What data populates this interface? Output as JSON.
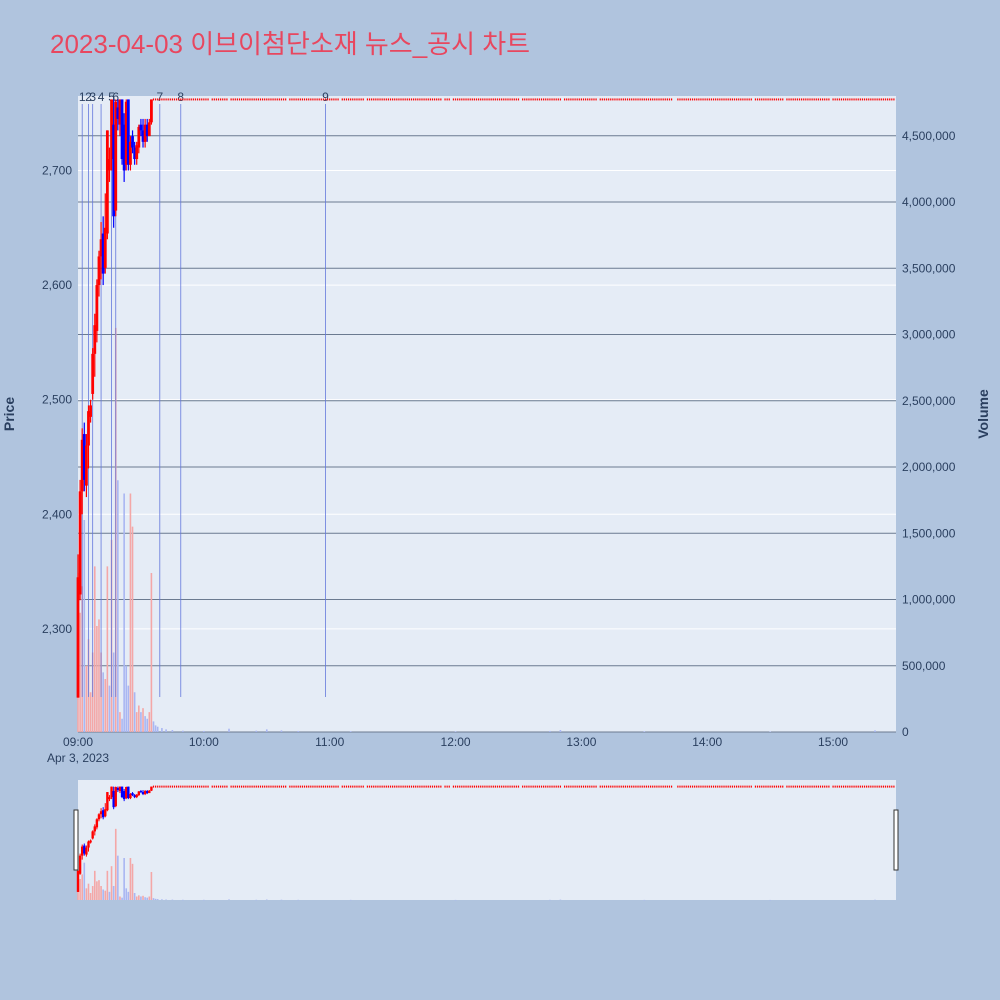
{
  "title": "2023-04-03 이브이첨단소재 뉴스_공시 차트",
  "chart_data": {
    "type": "candlestick",
    "date_label": "Apr 3, 2023",
    "yaxis_price": {
      "title": "Price",
      "range": [
        2210,
        2765
      ],
      "ticks": [
        2300,
        2400,
        2500,
        2600,
        2700
      ],
      "tick_labels": [
        "2,300",
        "2,400",
        "2,500",
        "2,600",
        "2,700"
      ]
    },
    "yaxis_volume": {
      "title": "Volume",
      "range": [
        0,
        4800000
      ],
      "ticks": [
        0,
        500000,
        1000000,
        1500000,
        2000000,
        2500000,
        3000000,
        3500000,
        4000000,
        4500000
      ],
      "tick_labels": [
        "0",
        "500,000",
        "1,000,000",
        "1,500,000",
        "2,000,000",
        "2,500,000",
        "3,000,000",
        "3,500,000",
        "4,000,000",
        "4,500,000"
      ]
    },
    "xaxis": {
      "range": [
        "09:00",
        "15:30"
      ],
      "ticks": [
        "09:00",
        "10:00",
        "11:00",
        "12:00",
        "13:00",
        "14:00",
        "15:00"
      ]
    },
    "candles": [
      {
        "t": "09:00",
        "o": 2240,
        "h": 2365,
        "l": 2240,
        "c": 2345
      },
      {
        "t": "09:01",
        "o": 2330,
        "h": 2430,
        "l": 2325,
        "c": 2420
      },
      {
        "t": "09:02",
        "o": 2420,
        "h": 2475,
        "l": 2400,
        "c": 2465
      },
      {
        "t": "09:03",
        "o": 2470,
        "h": 2480,
        "l": 2420,
        "c": 2430
      },
      {
        "t": "09:04",
        "o": 2425,
        "h": 2470,
        "l": 2415,
        "c": 2460
      },
      {
        "t": "09:05",
        "o": 2460,
        "h": 2495,
        "l": 2440,
        "c": 2490
      },
      {
        "t": "09:06",
        "o": 2485,
        "h": 2500,
        "l": 2480,
        "c": 2495
      },
      {
        "t": "09:07",
        "o": 2505,
        "h": 2545,
        "l": 2500,
        "c": 2540
      },
      {
        "t": "09:08",
        "o": 2540,
        "h": 2575,
        "l": 2520,
        "c": 2565
      },
      {
        "t": "09:09",
        "o": 2560,
        "h": 2605,
        "l": 2550,
        "c": 2600
      },
      {
        "t": "09:10",
        "o": 2600,
        "h": 2630,
        "l": 2590,
        "c": 2625
      },
      {
        "t": "09:11",
        "o": 2625,
        "h": 2655,
        "l": 2605,
        "c": 2640
      },
      {
        "t": "09:12",
        "o": 2645,
        "h": 2660,
        "l": 2600,
        "c": 2610
      },
      {
        "t": "09:13",
        "o": 2615,
        "h": 2680,
        "l": 2610,
        "c": 2650
      },
      {
        "t": "09:14",
        "o": 2645,
        "h": 2735,
        "l": 2640,
        "c": 2735
      },
      {
        "t": "09:15",
        "o": 2700,
        "h": 2720,
        "l": 2690,
        "c": 2710
      },
      {
        "t": "09:16",
        "o": 2710,
        "h": 2762,
        "l": 2700,
        "c": 2762
      },
      {
        "t": "09:17",
        "o": 2740,
        "h": 2762,
        "l": 2650,
        "c": 2660
      },
      {
        "t": "09:18",
        "o": 2665,
        "h": 2762,
        "l": 2660,
        "c": 2760
      },
      {
        "t": "09:19",
        "o": 2755,
        "h": 2762,
        "l": 2735,
        "c": 2745
      },
      {
        "t": "09:20",
        "o": 2740,
        "h": 2762,
        "l": 2730,
        "c": 2762
      },
      {
        "t": "09:21",
        "o": 2762,
        "h": 2762,
        "l": 2705,
        "c": 2710
      },
      {
        "t": "09:22",
        "o": 2740,
        "h": 2750,
        "l": 2690,
        "c": 2700
      },
      {
        "t": "09:23",
        "o": 2705,
        "h": 2762,
        "l": 2700,
        "c": 2760
      },
      {
        "t": "09:24",
        "o": 2762,
        "h": 2762,
        "l": 2700,
        "c": 2705
      },
      {
        "t": "09:25",
        "o": 2705,
        "h": 2730,
        "l": 2700,
        "c": 2725
      },
      {
        "t": "09:26",
        "o": 2730,
        "h": 2735,
        "l": 2715,
        "c": 2720
      },
      {
        "t": "09:27",
        "o": 2720,
        "h": 2725,
        "l": 2705,
        "c": 2710
      },
      {
        "t": "09:28",
        "o": 2710,
        "h": 2725,
        "l": 2705,
        "c": 2722
      },
      {
        "t": "09:29",
        "o": 2720,
        "h": 2740,
        "l": 2715,
        "c": 2738
      },
      {
        "t": "09:30",
        "o": 2740,
        "h": 2745,
        "l": 2730,
        "c": 2735
      },
      {
        "t": "09:31",
        "o": 2735,
        "h": 2745,
        "l": 2720,
        "c": 2725
      },
      {
        "t": "09:32",
        "o": 2725,
        "h": 2745,
        "l": 2720,
        "c": 2740
      },
      {
        "t": "09:33",
        "o": 2740,
        "h": 2745,
        "l": 2725,
        "c": 2730
      },
      {
        "t": "09:34",
        "o": 2730,
        "h": 2745,
        "l": 2730,
        "c": 2742
      },
      {
        "t": "09:35",
        "o": 2742,
        "h": 2762,
        "l": 2740,
        "c": 2762
      }
    ],
    "upper_limit": {
      "price": 2762,
      "from": "09:36",
      "to": "15:30",
      "color": "#ff0000"
    },
    "volumes": [
      {
        "t": "09:00",
        "v": 1200000,
        "up": true
      },
      {
        "t": "09:01",
        "v": 900000,
        "up": true
      },
      {
        "t": "09:02",
        "v": 1100000,
        "up": true
      },
      {
        "t": "09:03",
        "v": 1600000,
        "up": false
      },
      {
        "t": "09:04",
        "v": 500000,
        "up": true
      },
      {
        "t": "09:05",
        "v": 700000,
        "up": true
      },
      {
        "t": "09:06",
        "v": 300000,
        "up": true
      },
      {
        "t": "09:07",
        "v": 600000,
        "up": true
      },
      {
        "t": "09:08",
        "v": 1250000,
        "up": true
      },
      {
        "t": "09:09",
        "v": 800000,
        "up": true
      },
      {
        "t": "09:10",
        "v": 850000,
        "up": true
      },
      {
        "t": "09:11",
        "v": 600000,
        "up": true
      },
      {
        "t": "09:12",
        "v": 450000,
        "up": false
      },
      {
        "t": "09:13",
        "v": 400000,
        "up": true
      },
      {
        "t": "09:14",
        "v": 1250000,
        "up": true
      },
      {
        "t": "09:15",
        "v": 350000,
        "up": false
      },
      {
        "t": "09:16",
        "v": 1450000,
        "up": true
      },
      {
        "t": "09:17",
        "v": 600000,
        "up": false
      },
      {
        "t": "09:18",
        "v": 3050000,
        "up": true
      },
      {
        "t": "09:19",
        "v": 1900000,
        "up": false
      },
      {
        "t": "09:20",
        "v": 150000,
        "up": true
      },
      {
        "t": "09:21",
        "v": 100000,
        "up": false
      },
      {
        "t": "09:22",
        "v": 1800000,
        "up": false
      },
      {
        "t": "09:23",
        "v": 500000,
        "up": false
      },
      {
        "t": "09:24",
        "v": 350000,
        "up": false
      },
      {
        "t": "09:25",
        "v": 1800000,
        "up": true
      },
      {
        "t": "09:26",
        "v": 1550000,
        "up": true
      },
      {
        "t": "09:27",
        "v": 300000,
        "up": false
      },
      {
        "t": "09:28",
        "v": 150000,
        "up": true
      },
      {
        "t": "09:29",
        "v": 200000,
        "up": true
      },
      {
        "t": "09:30",
        "v": 150000,
        "up": false
      },
      {
        "t": "09:31",
        "v": 180000,
        "up": true
      },
      {
        "t": "09:32",
        "v": 120000,
        "up": false
      },
      {
        "t": "09:33",
        "v": 100000,
        "up": false
      },
      {
        "t": "09:34",
        "v": 150000,
        "up": true
      },
      {
        "t": "09:35",
        "v": 1200000,
        "up": true
      },
      {
        "t": "09:36",
        "v": 80000,
        "up": false
      },
      {
        "t": "09:37",
        "v": 50000,
        "up": false
      },
      {
        "t": "09:38",
        "v": 40000,
        "up": false
      },
      {
        "t": "09:40",
        "v": 30000,
        "up": false
      },
      {
        "t": "09:42",
        "v": 20000,
        "up": false
      },
      {
        "t": "09:45",
        "v": 15000,
        "up": false
      },
      {
        "t": "09:50",
        "v": 10000,
        "up": false
      },
      {
        "t": "10:00",
        "v": 8000,
        "up": false
      },
      {
        "t": "10:12",
        "v": 25000,
        "up": false
      },
      {
        "t": "10:25",
        "v": 10000,
        "up": false
      },
      {
        "t": "10:30",
        "v": 20000,
        "up": false
      },
      {
        "t": "10:37",
        "v": 12000,
        "up": false
      },
      {
        "t": "10:45",
        "v": 8000,
        "up": false
      },
      {
        "t": "11:10",
        "v": 6000,
        "up": false
      },
      {
        "t": "12:00",
        "v": 5000,
        "up": false
      },
      {
        "t": "12:45",
        "v": 8000,
        "up": false
      },
      {
        "t": "12:50",
        "v": 15000,
        "up": false
      },
      {
        "t": "13:30",
        "v": 5000,
        "up": false
      },
      {
        "t": "14:30",
        "v": 4000,
        "up": false
      },
      {
        "t": "15:20",
        "v": 12000,
        "up": false
      }
    ],
    "news_markers": [
      {
        "label": "1",
        "t": "09:02"
      },
      {
        "label": "2",
        "t": "09:05"
      },
      {
        "label": "3",
        "t": "09:07"
      },
      {
        "label": "4",
        "t": "09:11"
      },
      {
        "label": "5",
        "t": "09:16"
      },
      {
        "label": "6",
        "t": "09:18"
      },
      {
        "label": "7",
        "t": "09:39"
      },
      {
        "label": "8",
        "t": "09:49"
      },
      {
        "label": "9",
        "t": "10:58"
      }
    ],
    "colors": {
      "up": "#ff0000",
      "down": "#0000ff",
      "up_volume": "#f4a7a7",
      "down_volume": "#a9b6f2",
      "news_line": "#6478dc",
      "background": "#b0c4de",
      "plot_bg": "#e5ecf6",
      "title": "#e8475f"
    }
  }
}
